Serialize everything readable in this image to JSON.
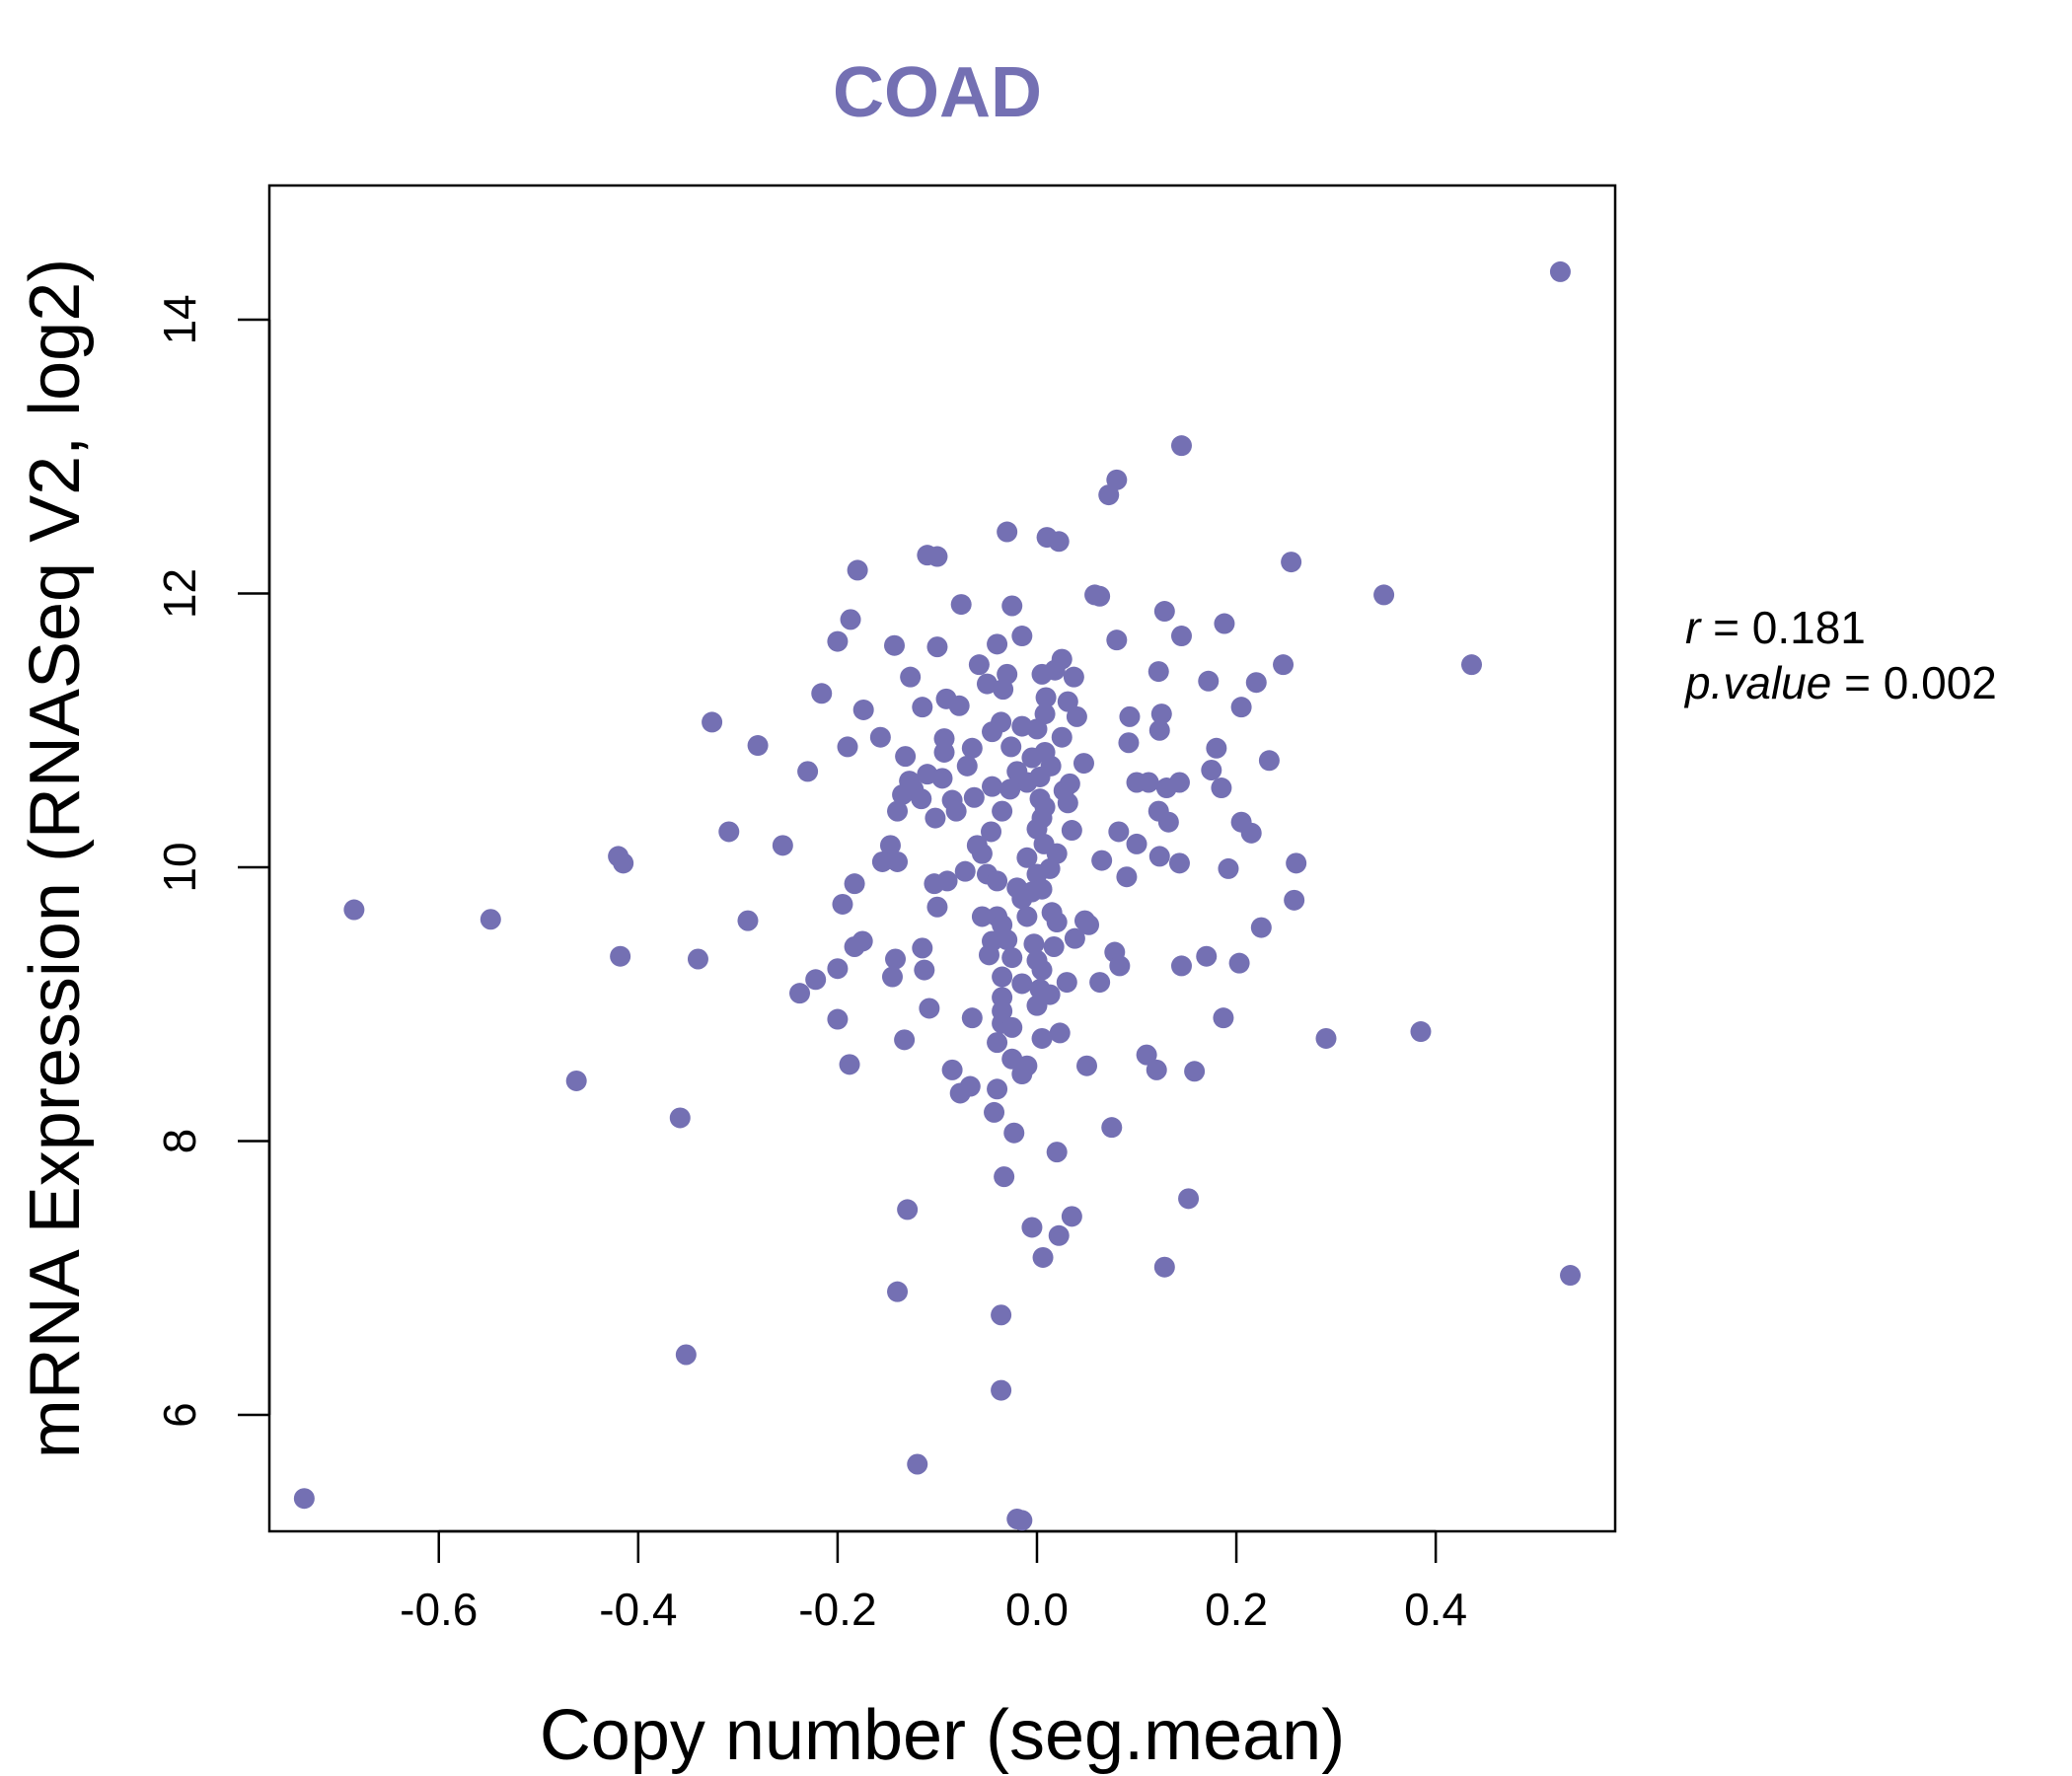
{
  "chart_data": {
    "type": "scatter",
    "title": "COAD",
    "xlabel": "Copy number (seg.mean)",
    "ylabel": "mRNA Expression (RNASeq V2, log2)",
    "xlim": [
      -0.77,
      0.58
    ],
    "ylim": [
      5.15,
      14.98
    ],
    "xticks": [
      -0.6,
      -0.4,
      -0.2,
      0.0,
      0.2,
      0.4
    ],
    "xtick_labels": [
      "-0.6",
      "-0.4",
      "-0.2",
      "0.0",
      "0.2",
      "0.4"
    ],
    "yticks": [
      6,
      8,
      10,
      12,
      14
    ],
    "ytick_labels": [
      "6",
      "8",
      "10",
      "12",
      "14"
    ],
    "grid": false,
    "point_color": "#7470b3",
    "stats": {
      "r_symbol": "r",
      "r_value": "0.181",
      "p_symbol": "p.value",
      "p_value": "0.002"
    },
    "points": [
      [
        0.525,
        14.35
      ],
      [
        0.145,
        13.08
      ],
      [
        0.08,
        12.83
      ],
      [
        0.072,
        12.72
      ],
      [
        -0.03,
        12.45
      ],
      [
        0.01,
        12.41
      ],
      [
        0.022,
        12.38
      ],
      [
        -0.11,
        12.28
      ],
      [
        -0.1,
        12.27
      ],
      [
        -0.18,
        12.17
      ],
      [
        0.255,
        12.23
      ],
      [
        0.348,
        11.99
      ],
      [
        0.058,
        11.99
      ],
      [
        0.063,
        11.98
      ],
      [
        -0.076,
        11.92
      ],
      [
        -0.025,
        11.91
      ],
      [
        0.128,
        11.87
      ],
      [
        -0.187,
        11.81
      ],
      [
        0.188,
        11.78
      ],
      [
        -0.015,
        11.69
      ],
      [
        0.145,
        11.69
      ],
      [
        -0.2,
        11.65
      ],
      [
        -0.143,
        11.62
      ],
      [
        -0.1,
        11.61
      ],
      [
        -0.04,
        11.63
      ],
      [
        0.08,
        11.66
      ],
      [
        0.025,
        11.52
      ],
      [
        -0.058,
        11.48
      ],
      [
        0.247,
        11.48
      ],
      [
        0.436,
        11.48
      ],
      [
        0.122,
        11.43
      ],
      [
        -0.03,
        11.41
      ],
      [
        0.005,
        11.41
      ],
      [
        0.018,
        11.44
      ],
      [
        0.037,
        11.39
      ],
      [
        -0.127,
        11.39
      ],
      [
        -0.05,
        11.34
      ],
      [
        -0.034,
        11.3
      ],
      [
        0.172,
        11.36
      ],
      [
        0.22,
        11.35
      ],
      [
        -0.216,
        11.27
      ],
      [
        -0.091,
        11.23
      ],
      [
        0.009,
        11.24
      ],
      [
        0.031,
        11.21
      ],
      [
        -0.078,
        11.18
      ],
      [
        -0.115,
        11.17
      ],
      [
        -0.174,
        11.15
      ],
      [
        0.205,
        11.17
      ],
      [
        0.008,
        11.12
      ],
      [
        0.04,
        11.1
      ],
      [
        0.093,
        11.1
      ],
      [
        0.125,
        11.12
      ],
      [
        -0.326,
        11.06
      ],
      [
        -0.036,
        11.06
      ],
      [
        -0.015,
        11.03
      ],
      [
        -0.045,
        10.99
      ],
      [
        0.0,
        11.01
      ],
      [
        0.025,
        10.95
      ],
      [
        0.123,
        11.0
      ],
      [
        -0.157,
        10.95
      ],
      [
        -0.093,
        10.94
      ],
      [
        0.092,
        10.91
      ],
      [
        -0.28,
        10.89
      ],
      [
        -0.19,
        10.88
      ],
      [
        -0.065,
        10.87
      ],
      [
        -0.026,
        10.88
      ],
      [
        0.008,
        10.84
      ],
      [
        0.18,
        10.87
      ],
      [
        -0.093,
        10.84
      ],
      [
        -0.132,
        10.81
      ],
      [
        -0.005,
        10.8
      ],
      [
        0.014,
        10.74
      ],
      [
        0.047,
        10.76
      ],
      [
        0.233,
        10.78
      ],
      [
        -0.07,
        10.74
      ],
      [
        -0.23,
        10.7
      ],
      [
        -0.11,
        10.68
      ],
      [
        -0.02,
        10.7
      ],
      [
        0.175,
        10.71
      ],
      [
        -0.095,
        10.65
      ],
      [
        -0.128,
        10.63
      ],
      [
        0.003,
        10.66
      ],
      [
        -0.01,
        10.62
      ],
      [
        0.033,
        10.61
      ],
      [
        0.1,
        10.62
      ],
      [
        0.112,
        10.62
      ],
      [
        0.143,
        10.62
      ],
      [
        -0.045,
        10.59
      ],
      [
        -0.124,
        10.57
      ],
      [
        -0.027,
        10.57
      ],
      [
        0.027,
        10.56
      ],
      [
        0.13,
        10.58
      ],
      [
        0.185,
        10.58
      ],
      [
        -0.135,
        10.53
      ],
      [
        -0.116,
        10.5
      ],
      [
        -0.085,
        10.49
      ],
      [
        -0.063,
        10.51
      ],
      [
        0.003,
        10.5
      ],
      [
        0.031,
        10.47
      ],
      [
        -0.14,
        10.41
      ],
      [
        -0.081,
        10.41
      ],
      [
        -0.035,
        10.41
      ],
      [
        0.008,
        10.44
      ],
      [
        0.122,
        10.41
      ],
      [
        -0.102,
        10.36
      ],
      [
        0.005,
        10.36
      ],
      [
        0.132,
        10.33
      ],
      [
        0.205,
        10.33
      ],
      [
        -0.309,
        10.26
      ],
      [
        -0.046,
        10.26
      ],
      [
        0.0,
        10.28
      ],
      [
        0.035,
        10.27
      ],
      [
        0.082,
        10.26
      ],
      [
        0.215,
        10.25
      ],
      [
        -0.255,
        10.16
      ],
      [
        -0.147,
        10.16
      ],
      [
        -0.06,
        10.16
      ],
      [
        0.007,
        10.17
      ],
      [
        0.1,
        10.17
      ],
      [
        -0.42,
        10.08
      ],
      [
        -0.415,
        10.03
      ],
      [
        -0.155,
        10.04
      ],
      [
        -0.14,
        10.04
      ],
      [
        -0.055,
        10.1
      ],
      [
        -0.01,
        10.07
      ],
      [
        0.02,
        10.1
      ],
      [
        0.065,
        10.05
      ],
      [
        0.123,
        10.08
      ],
      [
        0.143,
        10.03
      ],
      [
        0.26,
        10.03
      ],
      [
        -0.072,
        9.97
      ],
      [
        -0.05,
        9.95
      ],
      [
        -0.04,
        9.9
      ],
      [
        0.0,
        9.95
      ],
      [
        0.013,
        9.99
      ],
      [
        0.09,
        9.93
      ],
      [
        0.192,
        9.99
      ],
      [
        -0.183,
        9.88
      ],
      [
        -0.103,
        9.88
      ],
      [
        -0.09,
        9.9
      ],
      [
        -0.02,
        9.85
      ],
      [
        -0.005,
        9.82
      ],
      [
        0.005,
        9.84
      ],
      [
        -0.195,
        9.73
      ],
      [
        -0.1,
        9.71
      ],
      [
        -0.015,
        9.77
      ],
      [
        0.258,
        9.76
      ],
      [
        -0.685,
        9.69
      ],
      [
        -0.548,
        9.62
      ],
      [
        -0.29,
        9.61
      ],
      [
        -0.055,
        9.64
      ],
      [
        -0.04,
        9.64
      ],
      [
        -0.035,
        9.58
      ],
      [
        -0.01,
        9.64
      ],
      [
        0.015,
        9.67
      ],
      [
        0.02,
        9.6
      ],
      [
        0.048,
        9.61
      ],
      [
        0.052,
        9.58
      ],
      [
        0.225,
        9.56
      ],
      [
        -0.175,
        9.46
      ],
      [
        -0.183,
        9.42
      ],
      [
        -0.045,
        9.46
      ],
      [
        -0.03,
        9.47
      ],
      [
        -0.003,
        9.44
      ],
      [
        0.017,
        9.42
      ],
      [
        0.038,
        9.48
      ],
      [
        -0.418,
        9.35
      ],
      [
        -0.34,
        9.33
      ],
      [
        -0.142,
        9.33
      ],
      [
        -0.115,
        9.41
      ],
      [
        -0.048,
        9.36
      ],
      [
        -0.025,
        9.34
      ],
      [
        0.0,
        9.32
      ],
      [
        0.078,
        9.38
      ],
      [
        0.17,
        9.35
      ],
      [
        -0.2,
        9.26
      ],
      [
        -0.113,
        9.25
      ],
      [
        0.005,
        9.25
      ],
      [
        0.083,
        9.28
      ],
      [
        0.145,
        9.28
      ],
      [
        0.203,
        9.3
      ],
      [
        -0.145,
        9.2
      ],
      [
        -0.035,
        9.2
      ],
      [
        -0.015,
        9.15
      ],
      [
        0.003,
        9.11
      ],
      [
        0.013,
        9.07
      ],
      [
        0.03,
        9.16
      ],
      [
        0.063,
        9.16
      ],
      [
        -0.222,
        9.18
      ],
      [
        -0.238,
        9.08
      ],
      [
        -0.035,
        9.05
      ],
      [
        0.0,
        8.99
      ],
      [
        -0.108,
        8.97
      ],
      [
        -0.035,
        8.95
      ],
      [
        -0.2,
        8.89
      ],
      [
        -0.065,
        8.9
      ],
      [
        -0.035,
        8.86
      ],
      [
        -0.025,
        8.83
      ],
      [
        0.023,
        8.79
      ],
      [
        0.187,
        8.9
      ],
      [
        0.29,
        8.75
      ],
      [
        0.385,
        8.8
      ],
      [
        -0.133,
        8.74
      ],
      [
        -0.04,
        8.72
      ],
      [
        0.005,
        8.75
      ],
      [
        0.11,
        8.63
      ],
      [
        -0.025,
        8.6
      ],
      [
        -0.01,
        8.55
      ],
      [
        -0.015,
        8.49
      ],
      [
        0.05,
        8.55
      ],
      [
        0.12,
        8.52
      ],
      [
        0.158,
        8.51
      ],
      [
        -0.188,
        8.56
      ],
      [
        -0.085,
        8.52
      ],
      [
        -0.462,
        8.44
      ],
      [
        -0.067,
        8.4
      ],
      [
        -0.077,
        8.35
      ],
      [
        -0.04,
        8.38
      ],
      [
        -0.043,
        8.21
      ],
      [
        -0.358,
        8.17
      ],
      [
        0.075,
        8.1
      ],
      [
        -0.023,
        8.06
      ],
      [
        0.02,
        7.92
      ],
      [
        -0.033,
        7.74
      ],
      [
        0.152,
        7.58
      ],
      [
        -0.13,
        7.5
      ],
      [
        0.035,
        7.45
      ],
      [
        -0.005,
        7.37
      ],
      [
        0.022,
        7.31
      ],
      [
        0.006,
        7.15
      ],
      [
        0.128,
        7.08
      ],
      [
        0.535,
        7.02
      ],
      [
        -0.14,
        6.9
      ],
      [
        -0.036,
        6.73
      ],
      [
        -0.352,
        6.44
      ],
      [
        -0.036,
        6.18
      ],
      [
        -0.12,
        5.64
      ],
      [
        -0.735,
        5.39
      ],
      [
        -0.015,
        5.23
      ],
      [
        -0.02,
        5.24
      ]
    ]
  }
}
